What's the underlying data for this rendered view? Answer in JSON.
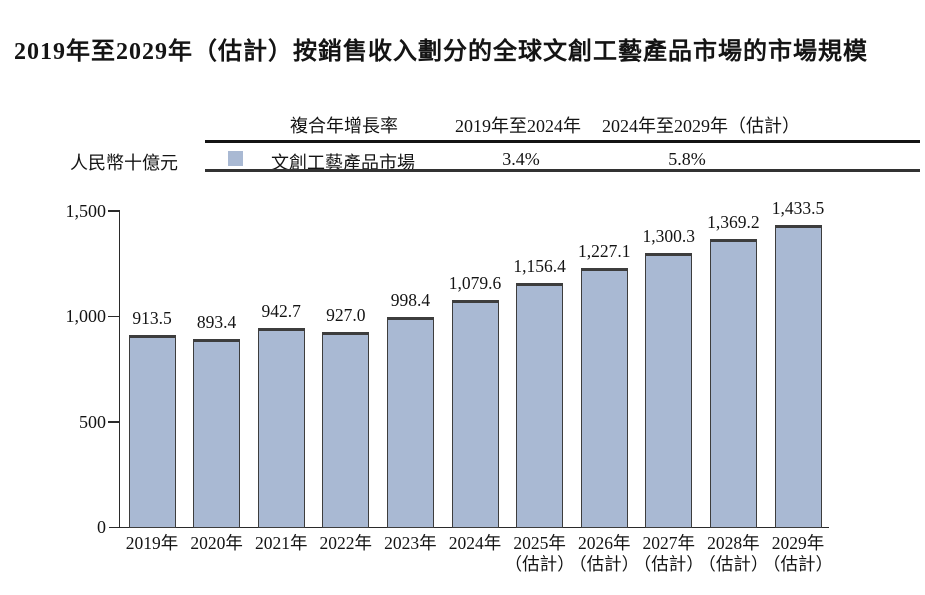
{
  "title": "2019年至2029年（估計）按銷售收入劃分的全球文創工藝產品市場的市場規模",
  "unit_label": "人民幣十億元",
  "cagr_table": {
    "cagr_header": "複合年增長率",
    "period1_header": "2019年至2024年",
    "period2_header": "2024年至2029年（估計）",
    "series_label": "文創工藝產品市場",
    "period1_cagr": "3.4%",
    "period2_cagr": "5.8%"
  },
  "colors": {
    "bar_fill": "#a9b9d3",
    "bar_border": "#3d3d3d",
    "axis": "#2a2a2a",
    "text": "#141414"
  },
  "chart_data": {
    "type": "bar",
    "title": "2019年至2029年（估計）按銷售收入劃分的全球文創工藝產品市場的市場規模",
    "ylabel": "人民幣十億元",
    "categories": [
      "2019年",
      "2020年",
      "2021年",
      "2022年",
      "2023年",
      "2024年",
      "2025年",
      "2026年",
      "2027年",
      "2028年",
      "2029年"
    ],
    "category_notes": [
      "",
      "",
      "",
      "",
      "",
      "",
      "（估計）",
      "（估計）",
      "（估計）",
      "（估計）",
      "（估計）"
    ],
    "values": [
      913.5,
      893.4,
      942.7,
      927.0,
      998.4,
      1079.6,
      1156.4,
      1227.1,
      1300.3,
      1369.2,
      1433.5
    ],
    "value_labels": [
      "913.5",
      "893.4",
      "942.7",
      "927.0",
      "998.4",
      "1,079.6",
      "1,156.4",
      "1,227.1",
      "1,300.3",
      "1,369.2",
      "1,433.5"
    ],
    "series_name": "文創工藝產品市場",
    "ylim": [
      0,
      1500
    ],
    "ytick_values": [
      0,
      500,
      1000,
      1500
    ],
    "ytick_labels": [
      "0",
      "500",
      "1,000",
      "1,500"
    ],
    "grid": false,
    "legend_position": "top-table",
    "cagr_2019_2024": "3.4%",
    "cagr_2024_2029_est": "5.8%"
  }
}
